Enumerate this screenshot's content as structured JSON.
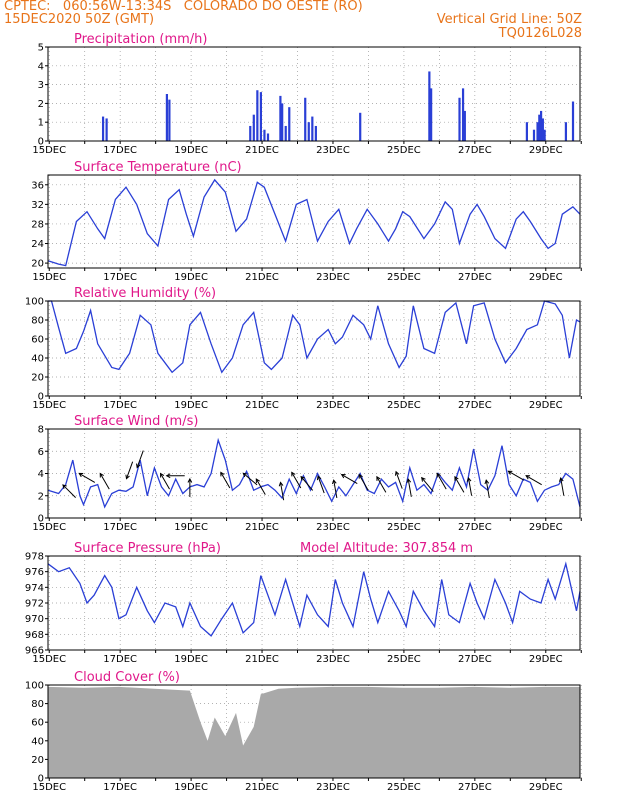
{
  "header": {
    "line1_left": "CPTEC:   060:56W-13:34S   COLORADO DO OESTE (RO)",
    "line2_left": "15DEC2020 50Z (GMT)",
    "line2_right": "Vertical Grid Line: 50Z",
    "line3_right": "TQ0126L028"
  },
  "colors": {
    "line": "#2a3fd6",
    "bar": "#2a3fd6",
    "title": "#e0188a",
    "header": "#e8741a",
    "cloud": "#a9a9a9"
  },
  "x_ticks": [
    "15DEC",
    "17DEC",
    "19DEC",
    "21DEC",
    "23DEC",
    "25DEC",
    "27DEC",
    "29DEC"
  ],
  "panels": [
    {
      "key": "precip",
      "title": "Precipitation (mm/h)",
      "y_ticks": [
        "0",
        "1",
        "2",
        "3",
        "4",
        "5"
      ],
      "ylim": [
        0,
        5
      ]
    },
    {
      "key": "temp",
      "title": "Surface Temperature (nC)",
      "y_ticks": [
        "20",
        "24",
        "28",
        "32",
        "36"
      ],
      "ylim": [
        19,
        38
      ]
    },
    {
      "key": "rh",
      "title": "Relative Humidity (%)",
      "y_ticks": [
        "0",
        "20",
        "40",
        "60",
        "80",
        "100"
      ],
      "ylim": [
        0,
        100
      ]
    },
    {
      "key": "wind",
      "title": "Surface Wind (m/s)",
      "y_ticks": [
        "0",
        "2",
        "4",
        "6",
        "8"
      ],
      "ylim": [
        0,
        8
      ]
    },
    {
      "key": "pres",
      "title": "Surface Pressure (hPa)",
      "extra": "Model Altitude: 307.854 m",
      "y_ticks": [
        "966",
        "968",
        "970",
        "972",
        "974",
        "976",
        "978"
      ],
      "ylim": [
        966,
        978
      ]
    },
    {
      "key": "cloud",
      "title": "Cloud Cover (%)",
      "y_ticks": [
        "0",
        "20",
        "40",
        "60",
        "80",
        "100"
      ],
      "ylim": [
        0,
        100
      ]
    }
  ],
  "chart_data": [
    {
      "type": "bar",
      "title": "Precipitation (mm/h)",
      "x_start": "15DEC",
      "x_end": "30DEC",
      "ylim": [
        0,
        5
      ],
      "x": [
        16.55,
        16.65,
        18.35,
        18.42,
        20.7,
        20.8,
        20.9,
        21.0,
        21.1,
        21.2,
        21.55,
        21.6,
        21.7,
        21.8,
        22.25,
        22.35,
        22.45,
        22.55,
        23.8,
        25.75,
        25.8,
        26.6,
        26.7,
        26.75,
        28.5,
        28.7,
        28.8,
        28.85,
        28.9,
        28.95,
        29.0,
        29.6,
        29.8
      ],
      "values": [
        1.3,
        1.2,
        2.5,
        2.2,
        0.8,
        1.4,
        2.7,
        2.6,
        0.6,
        0.4,
        2.4,
        2.0,
        0.8,
        1.8,
        2.3,
        1.0,
        1.3,
        0.8,
        1.5,
        3.7,
        2.8,
        2.3,
        2.8,
        1.6,
        1.0,
        0.6,
        1.0,
        1.4,
        1.6,
        1.2,
        0.6,
        1.0,
        2.1
      ]
    },
    {
      "type": "line",
      "title": "Surface Temperature (nC)",
      "ylim": [
        19,
        38
      ],
      "x": [
        15.0,
        15.3,
        15.5,
        15.8,
        16.1,
        16.4,
        16.6,
        16.9,
        17.2,
        17.5,
        17.8,
        18.1,
        18.4,
        18.7,
        18.9,
        19.1,
        19.4,
        19.7,
        20.0,
        20.3,
        20.6,
        20.9,
        21.1,
        21.4,
        21.7,
        22.0,
        22.3,
        22.6,
        22.9,
        23.2,
        23.5,
        23.7,
        24.0,
        24.3,
        24.6,
        24.8,
        25.0,
        25.2,
        25.6,
        25.9,
        26.2,
        26.4,
        26.6,
        26.9,
        27.1,
        27.3,
        27.6,
        27.9,
        28.2,
        28.4,
        28.6,
        28.9,
        29.1,
        29.3,
        29.5,
        29.8,
        30.0
      ],
      "values": [
        20.5,
        19.8,
        19.5,
        28.5,
        30.5,
        27.0,
        25.0,
        33.0,
        35.5,
        32.0,
        26.0,
        23.5,
        33.0,
        35.0,
        30.0,
        25.5,
        33.5,
        37.0,
        34.5,
        26.5,
        29.0,
        36.5,
        35.5,
        30.0,
        24.5,
        32.0,
        33.0,
        24.5,
        28.5,
        31.0,
        24.0,
        27.0,
        31.0,
        28.0,
        24.5,
        27.0,
        30.5,
        29.5,
        25.0,
        28.0,
        32.5,
        31.0,
        24.0,
        30.0,
        32.0,
        29.5,
        25.0,
        23.0,
        29.0,
        30.5,
        28.5,
        25.0,
        23.0,
        24.0,
        30.0,
        31.5,
        30.0
      ]
    },
    {
      "type": "line",
      "title": "Relative Humidity (%)",
      "ylim": [
        0,
        100
      ],
      "x": [
        15.0,
        15.1,
        15.3,
        15.5,
        15.8,
        16.0,
        16.2,
        16.4,
        16.8,
        17.0,
        17.3,
        17.6,
        17.9,
        18.1,
        18.5,
        18.8,
        19.0,
        19.3,
        19.6,
        19.9,
        20.2,
        20.5,
        20.8,
        21.1,
        21.3,
        21.6,
        21.9,
        22.1,
        22.3,
        22.6,
        22.9,
        23.1,
        23.3,
        23.6,
        23.9,
        24.1,
        24.3,
        24.6,
        24.9,
        25.1,
        25.3,
        25.6,
        25.9,
        26.2,
        26.5,
        26.8,
        27.0,
        27.3,
        27.6,
        27.9,
        28.2,
        28.5,
        28.8,
        29.0,
        29.3,
        29.5,
        29.7,
        29.9,
        30.0
      ],
      "values": [
        100,
        100,
        72,
        45,
        50,
        68,
        90,
        55,
        30,
        28,
        45,
        85,
        75,
        45,
        25,
        35,
        75,
        88,
        55,
        25,
        40,
        75,
        88,
        35,
        28,
        40,
        85,
        75,
        40,
        60,
        70,
        55,
        62,
        85,
        75,
        60,
        95,
        55,
        30,
        42,
        95,
        50,
        45,
        88,
        98,
        55,
        95,
        98,
        60,
        35,
        50,
        70,
        75,
        100,
        97,
        85,
        40,
        80,
        78
      ]
    },
    {
      "type": "line",
      "title": "Surface Wind (m/s)",
      "ylim": [
        0,
        8
      ],
      "x": [
        15.0,
        15.3,
        15.5,
        15.7,
        15.9,
        16.0,
        16.2,
        16.4,
        16.6,
        16.8,
        17.0,
        17.2,
        17.4,
        17.6,
        17.8,
        18.0,
        18.2,
        18.4,
        18.6,
        18.8,
        19.0,
        19.2,
        19.4,
        19.6,
        19.8,
        20.0,
        20.2,
        20.4,
        20.6,
        20.8,
        21.0,
        21.2,
        21.4,
        21.6,
        21.8,
        22.0,
        22.2,
        22.4,
        22.6,
        22.8,
        23.0,
        23.2,
        23.4,
        23.6,
        23.8,
        24.0,
        24.2,
        24.4,
        24.6,
        24.8,
        25.0,
        25.2,
        25.4,
        25.6,
        25.8,
        26.0,
        26.2,
        26.4,
        26.6,
        26.8,
        27.0,
        27.2,
        27.4,
        27.6,
        27.8,
        28.0,
        28.2,
        28.4,
        28.6,
        28.8,
        29.0,
        29.2,
        29.4,
        29.6,
        29.8,
        30.0
      ],
      "values": [
        2.5,
        2.2,
        3.0,
        5.2,
        2.0,
        1.2,
        2.8,
        3.0,
        1.0,
        2.2,
        2.5,
        2.4,
        2.8,
        5.2,
        2.0,
        4.5,
        2.8,
        2.0,
        3.5,
        2.2,
        2.8,
        3.0,
        2.8,
        4.0,
        7.0,
        5.2,
        2.5,
        3.0,
        4.2,
        2.5,
        2.8,
        3.0,
        2.5,
        1.8,
        3.5,
        2.2,
        3.8,
        2.5,
        4.0,
        2.8,
        1.5,
        2.8,
        2.0,
        3.0,
        4.0,
        2.5,
        2.2,
        3.5,
        2.8,
        3.2,
        1.5,
        4.5,
        2.5,
        3.0,
        2.2,
        4.0,
        3.2,
        2.5,
        4.5,
        2.8,
        6.2,
        3.0,
        2.5,
        3.8,
        6.5,
        3.0,
        2.0,
        3.5,
        3.2,
        1.5,
        2.5,
        2.8,
        3.0,
        4.0,
        3.5,
        1.0
      ]
    },
    {
      "type": "line",
      "title": "Surface Pressure (hPa)",
      "ylim": [
        966,
        978
      ],
      "x": [
        15.0,
        15.3,
        15.6,
        15.9,
        16.1,
        16.3,
        16.6,
        16.8,
        17.0,
        17.2,
        17.5,
        17.8,
        18.0,
        18.3,
        18.6,
        18.8,
        19.0,
        19.3,
        19.6,
        19.9,
        20.2,
        20.5,
        20.8,
        21.0,
        21.2,
        21.4,
        21.7,
        21.9,
        22.1,
        22.3,
        22.6,
        22.9,
        23.1,
        23.3,
        23.6,
        23.9,
        24.1,
        24.3,
        24.6,
        24.9,
        25.1,
        25.3,
        25.6,
        25.9,
        26.1,
        26.3,
        26.6,
        26.9,
        27.1,
        27.3,
        27.6,
        27.9,
        28.1,
        28.3,
        28.6,
        28.9,
        29.1,
        29.3,
        29.6,
        29.9,
        30.0
      ],
      "values": [
        977.0,
        976.0,
        976.5,
        974.5,
        972.0,
        973.0,
        975.5,
        974.0,
        970.0,
        970.5,
        974.0,
        971.0,
        969.5,
        972.0,
        971.5,
        969.0,
        972.0,
        969.0,
        967.8,
        970.0,
        972.0,
        968.2,
        969.5,
        975.5,
        973.0,
        970.5,
        975.0,
        972.0,
        969.0,
        973.0,
        970.5,
        969.0,
        975.0,
        972.0,
        969.0,
        976.0,
        972.5,
        969.5,
        973.5,
        971.0,
        969.0,
        973.5,
        971.0,
        969.0,
        975.0,
        970.5,
        969.5,
        974.5,
        972.0,
        970.0,
        975.0,
        972.0,
        969.5,
        973.5,
        972.5,
        972.0,
        975.0,
        972.5,
        977.0,
        971.0,
        973.5
      ]
    },
    {
      "type": "area",
      "title": "Cloud Cover (%)",
      "ylim": [
        0,
        100
      ],
      "x": [
        15.0,
        16.0,
        17.0,
        18.0,
        19.0,
        19.3,
        19.5,
        19.7,
        20.0,
        20.3,
        20.5,
        20.8,
        21.0,
        21.5,
        22.0,
        23.0,
        24.0,
        25.0,
        26.0,
        27.0,
        28.0,
        29.0,
        30.0
      ],
      "values": [
        98,
        97,
        98,
        96,
        94,
        60,
        40,
        65,
        45,
        70,
        35,
        55,
        90,
        96,
        97,
        98,
        98,
        97,
        97,
        98,
        97,
        98,
        98
      ]
    }
  ],
  "wind_arrows": [
    {
      "x": 15.6,
      "y": 2.4,
      "dir": 315
    },
    {
      "x": 16.1,
      "y": 3.6,
      "dir": 300
    },
    {
      "x": 16.6,
      "y": 3.3,
      "dir": 330
    },
    {
      "x": 17.3,
      "y": 4.3,
      "dir": 200
    },
    {
      "x": 17.6,
      "y": 5.3,
      "dir": 200
    },
    {
      "x": 18.3,
      "y": 3.3,
      "dir": 330
    },
    {
      "x": 18.6,
      "y": 3.8,
      "dir": 270
    },
    {
      "x": 19.0,
      "y": 2.7,
      "dir": 0
    },
    {
      "x": 20.0,
      "y": 3.4,
      "dir": 330
    },
    {
      "x": 20.7,
      "y": 3.5,
      "dir": 310
    },
    {
      "x": 21.0,
      "y": 2.8,
      "dir": 330
    },
    {
      "x": 21.6,
      "y": 2.4,
      "dir": 350
    },
    {
      "x": 22.0,
      "y": 3.4,
      "dir": 330
    },
    {
      "x": 22.3,
      "y": 3.1,
      "dir": 320
    },
    {
      "x": 22.7,
      "y": 3.0,
      "dir": 340
    },
    {
      "x": 23.1,
      "y": 2.6,
      "dir": 350
    },
    {
      "x": 23.5,
      "y": 3.5,
      "dir": 300
    },
    {
      "x": 23.9,
      "y": 3.2,
      "dir": 330
    },
    {
      "x": 24.4,
      "y": 3.0,
      "dir": 330
    },
    {
      "x": 24.9,
      "y": 3.4,
      "dir": 340
    },
    {
      "x": 25.2,
      "y": 2.7,
      "dir": 350
    },
    {
      "x": 25.7,
      "y": 3.0,
      "dir": 320
    },
    {
      "x": 26.1,
      "y": 3.3,
      "dir": 330
    },
    {
      "x": 26.6,
      "y": 3.0,
      "dir": 330
    },
    {
      "x": 26.9,
      "y": 2.8,
      "dir": 350
    },
    {
      "x": 27.4,
      "y": 2.6,
      "dir": 350
    },
    {
      "x": 28.2,
      "y": 3.8,
      "dir": 300
    },
    {
      "x": 28.7,
      "y": 3.4,
      "dir": 300
    },
    {
      "x": 29.5,
      "y": 2.8,
      "dir": 350
    }
  ]
}
